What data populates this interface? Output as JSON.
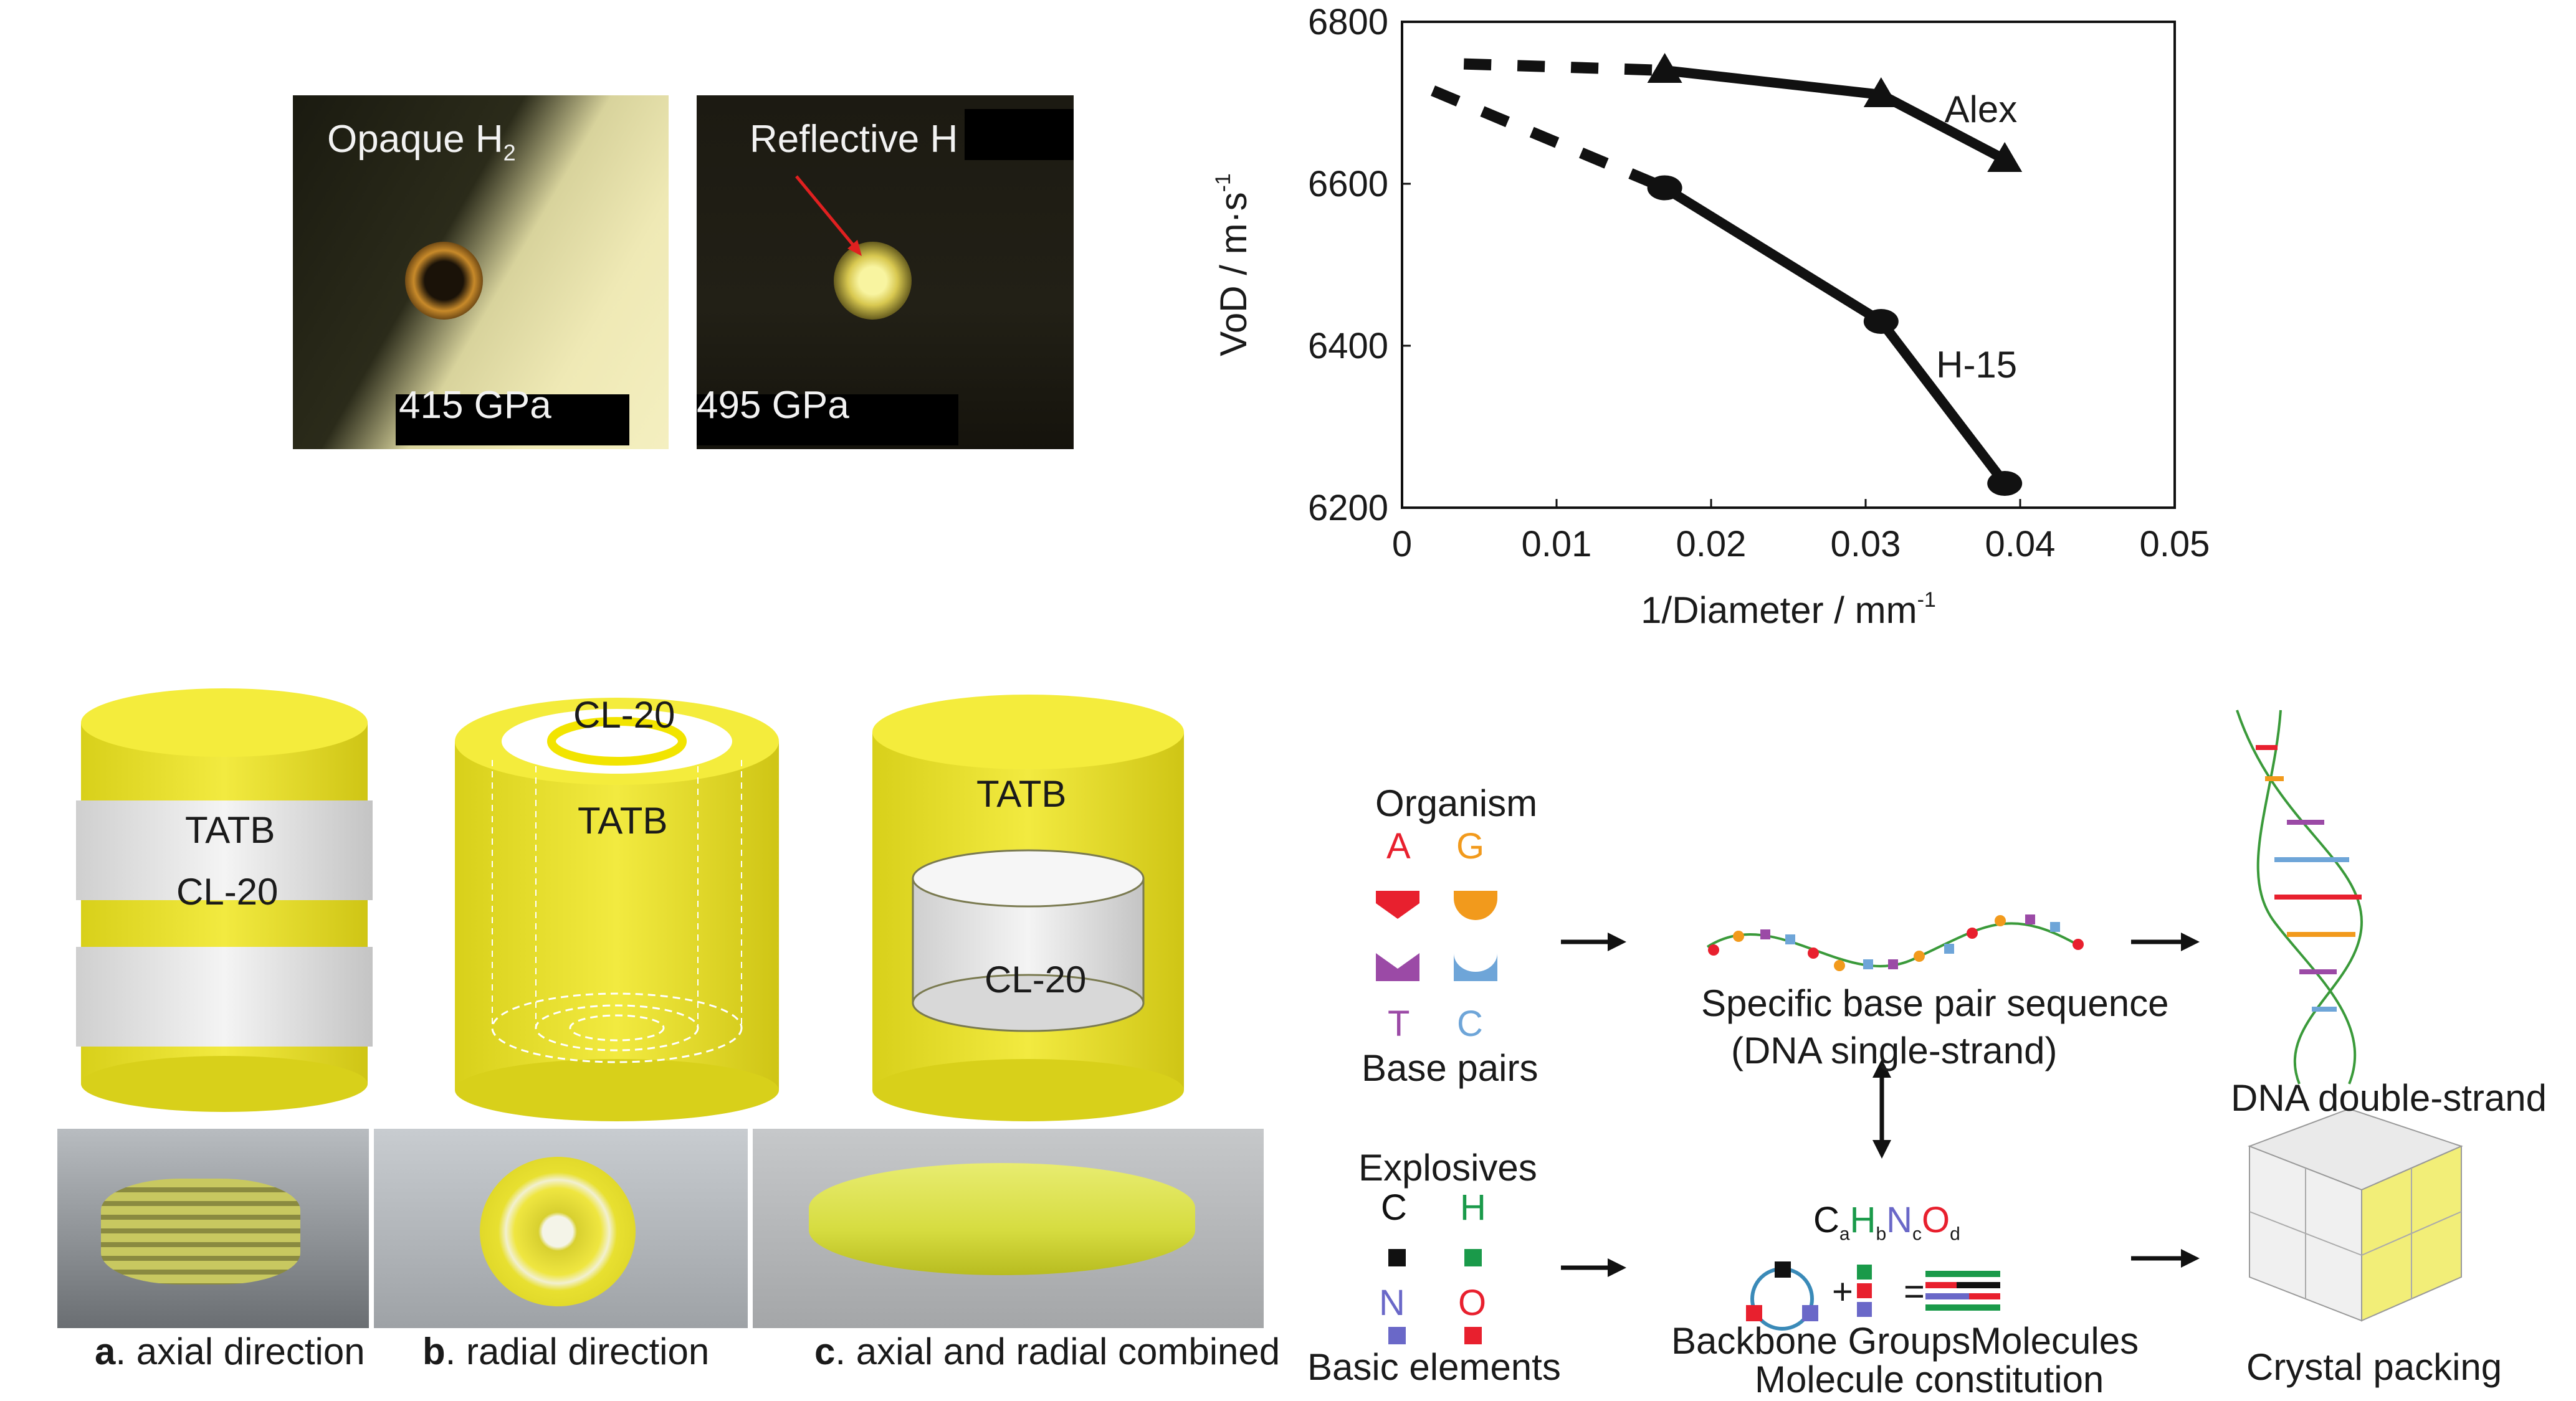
{
  "micro": {
    "left": {
      "label": "Opaque H",
      "sub": "2",
      "pressure": "415 GPa"
    },
    "right": {
      "label": "Reflective H",
      "pressure": "495 GPa"
    }
  },
  "chart_data": {
    "type": "line",
    "xlabel": "1/Diameter / mm",
    "xlabel_sup": "-1",
    "ylabel": "VoD / m·s",
    "ylabel_sup": "-1",
    "xlim": [
      0,
      0.05
    ],
    "ylim": [
      6200,
      6800
    ],
    "xticks": [
      "0",
      "0.01",
      "0.02",
      "0.03",
      "0.04",
      "0.05"
    ],
    "yticks": [
      "6200",
      "6400",
      "6600",
      "6800"
    ],
    "series": [
      {
        "name": "Alex",
        "marker": "triangle",
        "x": [
          0.017,
          0.031,
          0.039
        ],
        "y": [
          6740,
          6710,
          6630
        ],
        "extrapolation": {
          "x": [
            0.004,
            0.017
          ],
          "y": [
            6748,
            6740
          ]
        }
      },
      {
        "name": "H-15",
        "marker": "circle",
        "x": [
          0.017,
          0.031,
          0.039
        ],
        "y": [
          6595,
          6430,
          6230
        ],
        "extrapolation": {
          "x": [
            0.002,
            0.017
          ],
          "y": [
            6715,
            6595
          ]
        }
      }
    ]
  },
  "cylinders": {
    "a": {
      "top": "TATB",
      "band": "CL-20",
      "letter": "a",
      "caption": ". axial direction"
    },
    "b": {
      "ring": "CL-20",
      "body": "TATB",
      "letter": "b",
      "caption": ". radial direction"
    },
    "c": {
      "top": "TATB",
      "core": "CL-20",
      "letter": "c",
      "caption": ". axial and radial combined"
    }
  },
  "dna": {
    "organism": "Organism",
    "bases": [
      "A",
      "G",
      "T",
      "C"
    ],
    "base_pairs": "Base pairs",
    "sequence_line1": "Specific base pair sequence",
    "sequence_line2": "(DNA single-strand)",
    "double_strand": "DNA double-strand",
    "explosives": "Explosives",
    "elements": [
      "C",
      "H",
      "N",
      "O"
    ],
    "basic_elements": "Basic elements",
    "formula": {
      "C": "C",
      "a": "a",
      "H": "H",
      "b": "b",
      "N": "N",
      "c": "c",
      "O": "O",
      "d": "d"
    },
    "backbone": "Backbone Groups",
    "molecules": "Molecules",
    "constitution": "Molecule constitution",
    "crystal": "Crystal packing",
    "plus": "+",
    "equals": "="
  },
  "colors": {
    "tatb": "#f0e82e",
    "cl20": "#e8e8e8",
    "A": "#e8202e",
    "G": "#f29a1c",
    "T": "#9b4aa6",
    "C": "#6ea5d8",
    "el_C": "#111111",
    "el_H": "#1a9a4a",
    "el_N": "#6a68c8",
    "el_O": "#e8202e"
  }
}
